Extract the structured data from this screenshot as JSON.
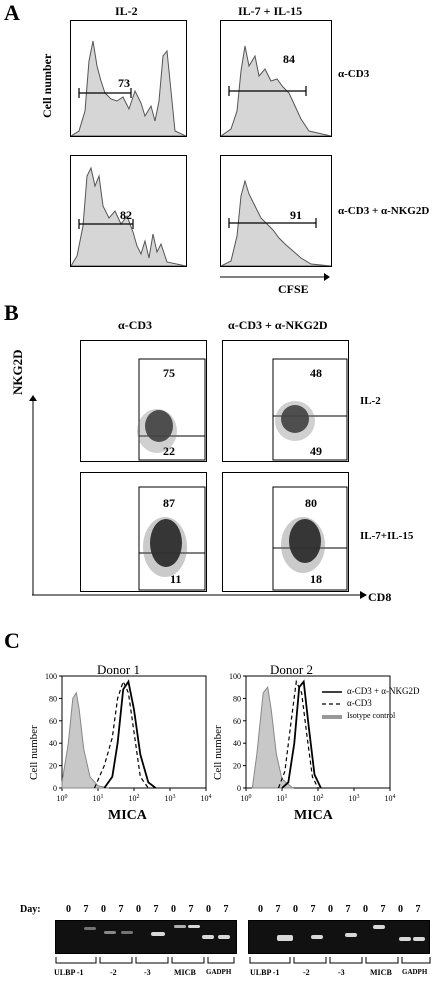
{
  "panels": {
    "a": {
      "letter": "A",
      "col_headers": [
        "IL-2",
        "IL-7 + IL-15"
      ],
      "row_labels": [
        "α-CD3",
        "α-CD3 + α-NKG2D"
      ],
      "y_label": "Cell number",
      "x_label": "CFSE",
      "values": [
        "73",
        "84",
        "82",
        "91"
      ]
    },
    "b": {
      "letter": "B",
      "col_headers": [
        "α-CD3",
        "α-CD3 + α-NKG2D"
      ],
      "row_labels": [
        "IL-2",
        "IL-7+IL-15"
      ],
      "y_label": "NKG2D",
      "x_label": "CD8",
      "quadrants": [
        {
          "upper": "75",
          "lower": "22"
        },
        {
          "upper": "48",
          "lower": "49"
        },
        {
          "upper": "87",
          "lower": "11"
        },
        {
          "upper": "80",
          "lower": "18"
        }
      ]
    },
    "c": {
      "letter": "C",
      "donors": [
        "Donor 1",
        "Donor 2"
      ],
      "y_label": "Cell number",
      "x_label": "MICA",
      "legend": [
        "α-CD3 + α-NKG2D",
        "α-CD3",
        "Isotype control"
      ],
      "gel": {
        "day_label": "Day:",
        "days": [
          "0",
          "7",
          "0",
          "7",
          "0",
          "7",
          "0",
          "7",
          "0",
          "7"
        ],
        "lanes": [
          "ULBP -1",
          "-2",
          "-3",
          "MICB",
          "GADPH"
        ]
      }
    }
  },
  "chart_data": [
    {
      "type": "area",
      "title": "Donor 1",
      "xlabel": "MICA",
      "ylabel": "Cell number",
      "x_scale": "log",
      "xlim": [
        1,
        10000
      ],
      "ylim": [
        0,
        100
      ],
      "yticks": [
        0,
        20,
        40,
        60,
        80,
        100
      ],
      "xticks": [
        "10^0",
        "10^1",
        "10^2",
        "10^3",
        "10^4"
      ],
      "series": [
        {
          "name": "Isotype control",
          "x": [
            1,
            1.5,
            2,
            2.5,
            3,
            4,
            6,
            10,
            20
          ],
          "values": [
            5,
            40,
            80,
            85,
            70,
            35,
            10,
            2,
            0
          ]
        },
        {
          "name": "α-CD3",
          "x": [
            8,
            15,
            25,
            35,
            50,
            70,
            100,
            150,
            250
          ],
          "values": [
            0,
            20,
            45,
            80,
            95,
            85,
            50,
            10,
            0
          ]
        },
        {
          "name": "α-CD3 + α-NKG2D",
          "x": [
            15,
            25,
            35,
            50,
            70,
            100,
            150,
            250,
            400
          ],
          "values": [
            0,
            10,
            40,
            88,
            95,
            70,
            30,
            5,
            0
          ]
        }
      ]
    },
    {
      "type": "area",
      "title": "Donor 2",
      "xlabel": "MICA",
      "ylabel": "Cell number",
      "x_scale": "log",
      "xlim": [
        1,
        10000
      ],
      "ylim": [
        0,
        100
      ],
      "yticks": [
        0,
        20,
        40,
        60,
        80,
        100
      ],
      "xticks": [
        "10^0",
        "10^1",
        "10^2",
        "10^3",
        "10^4"
      ],
      "series": [
        {
          "name": "Isotype control",
          "x": [
            1.5,
            2,
            3,
            4,
            5,
            7,
            10,
            20
          ],
          "values": [
            0,
            30,
            85,
            90,
            70,
            30,
            8,
            0
          ]
        },
        {
          "name": "α-CD3",
          "x": [
            8,
            12,
            18,
            25,
            35,
            50,
            70,
            100
          ],
          "values": [
            0,
            15,
            60,
            95,
            85,
            45,
            10,
            0
          ]
        },
        {
          "name": "α-CD3 + α-NKG2D",
          "x": [
            10,
            15,
            22,
            30,
            40,
            55,
            80,
            120
          ],
          "values": [
            0,
            5,
            40,
            90,
            95,
            55,
            12,
            0
          ]
        }
      ]
    }
  ]
}
